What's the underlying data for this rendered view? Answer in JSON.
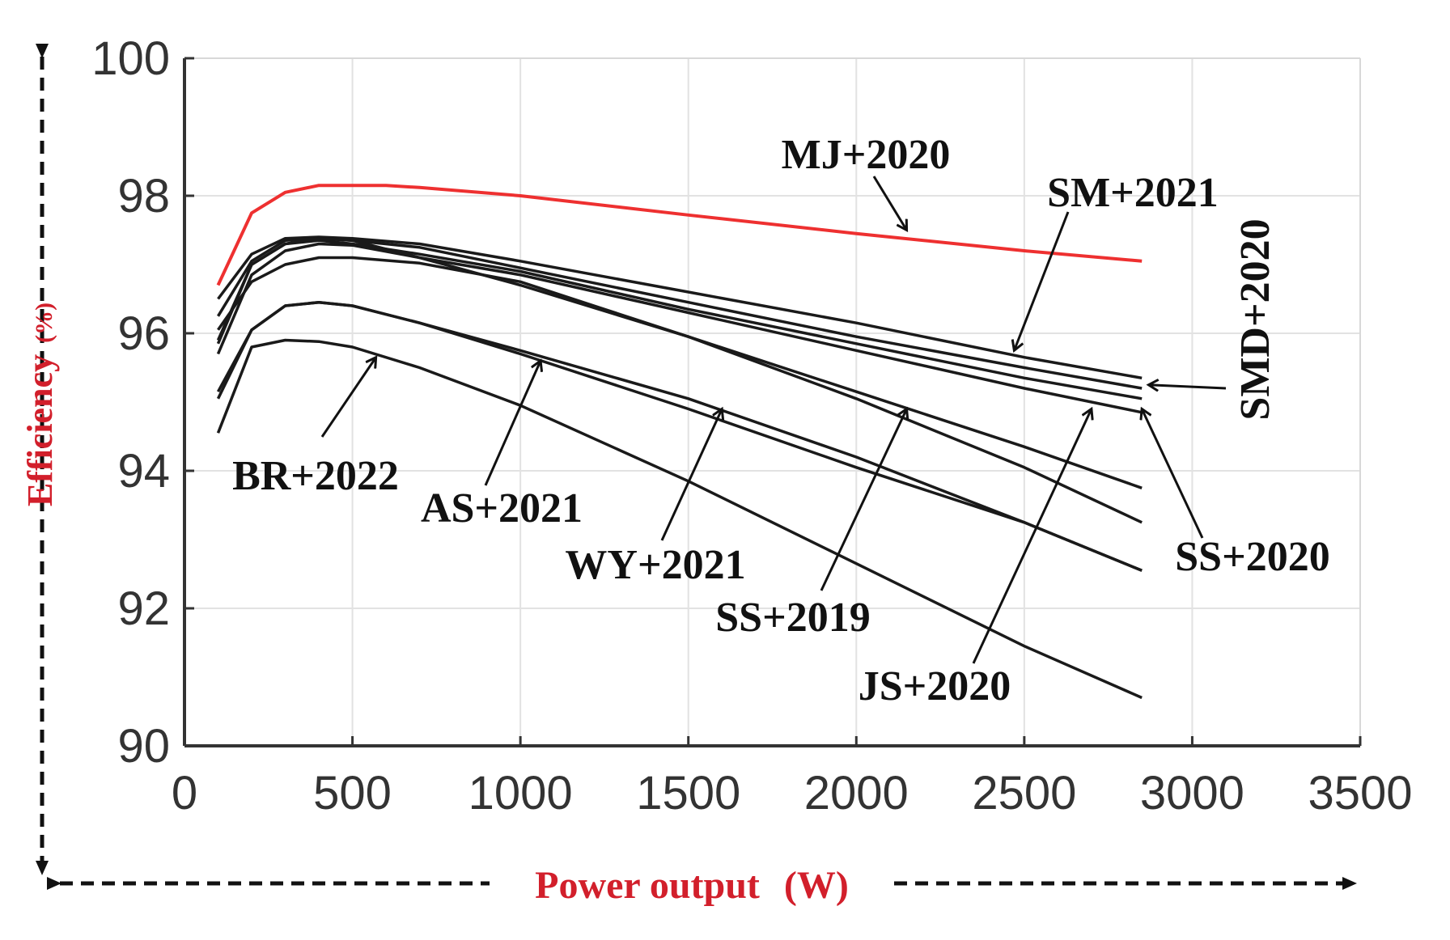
{
  "chart_data": {
    "type": "line",
    "xlabel": "Power output",
    "xunit": "(W)",
    "ylabel": "Efficiency",
    "yunit": "(%)",
    "xlim": [
      0,
      3500
    ],
    "ylim": [
      90,
      100
    ],
    "xticks": [
      "0",
      "500",
      "1000",
      "1500",
      "2000",
      "2500",
      "3000",
      "3500"
    ],
    "yticks": [
      "90",
      "92",
      "94",
      "96",
      "98",
      "100"
    ],
    "grid": true,
    "highlight_color": "#ee3030",
    "line_color": "#1a1a1a",
    "series": [
      {
        "name": "MJ+2020",
        "highlight": true,
        "x": [
          100,
          200,
          300,
          400,
          500,
          600,
          700,
          1000,
          1500,
          2000,
          2500,
          2850
        ],
        "y": [
          96.7,
          97.75,
          98.05,
          98.15,
          98.15,
          98.15,
          98.12,
          98.0,
          97.72,
          97.45,
          97.2,
          97.05
        ]
      },
      {
        "name": "SM+2021",
        "x": [
          100,
          200,
          300,
          400,
          500,
          700,
          1000,
          1500,
          2000,
          2500,
          2850
        ],
        "y": [
          96.5,
          97.15,
          97.38,
          97.4,
          97.38,
          97.3,
          97.05,
          96.6,
          96.15,
          95.65,
          95.35
        ]
      },
      {
        "name": "SMD+2020",
        "x": [
          100,
          200,
          300,
          400,
          500,
          700,
          1000,
          1500,
          2000,
          2500,
          2850
        ],
        "y": [
          96.25,
          97.05,
          97.35,
          97.38,
          97.35,
          97.25,
          96.95,
          96.45,
          95.95,
          95.5,
          95.2
        ]
      },
      {
        "name": "SS+2020",
        "x": [
          100,
          200,
          300,
          400,
          500,
          700,
          1000,
          1500,
          2000,
          2500,
          2850
        ],
        "y": [
          95.9,
          97.0,
          97.3,
          97.35,
          97.3,
          97.15,
          96.9,
          96.35,
          95.85,
          95.35,
          95.05
        ]
      },
      {
        "name": "SS+2020",
        "x": [
          100,
          200,
          300,
          400,
          500,
          700,
          1000,
          1500,
          2000,
          2500,
          2850
        ],
        "y": [
          95.7,
          96.85,
          97.2,
          97.3,
          97.28,
          97.1,
          96.85,
          96.3,
          95.75,
          95.2,
          94.85
        ]
      },
      {
        "name": "JS+2020",
        "x": [
          100,
          200,
          300,
          400,
          500,
          700,
          1000,
          1500,
          2000,
          2500,
          2850
        ],
        "y": [
          95.85,
          97.0,
          97.3,
          97.38,
          97.35,
          97.1,
          96.7,
          95.95,
          95.15,
          94.35,
          93.75
        ]
      },
      {
        "name": "SS+2019",
        "x": [
          100,
          200,
          300,
          400,
          500,
          700,
          1000,
          1500,
          2000,
          2500,
          2850
        ],
        "y": [
          96.05,
          96.75,
          97.0,
          97.1,
          97.1,
          97.02,
          96.75,
          95.95,
          95.05,
          94.05,
          93.25
        ]
      },
      {
        "name": "WY+2021",
        "x": [
          100,
          200,
          300,
          400,
          500,
          700,
          1000,
          1500,
          2000,
          2500,
          2850
        ],
        "y": [
          95.15,
          96.05,
          96.4,
          96.45,
          96.4,
          96.15,
          95.75,
          95.05,
          94.2,
          93.25,
          92.55
        ]
      },
      {
        "name": "AS+2021",
        "x": [
          100,
          200,
          300,
          400,
          500,
          700,
          1000,
          1500,
          2000,
          2500,
          2850
        ],
        "y": [
          95.05,
          96.05,
          96.4,
          96.45,
          96.4,
          96.15,
          95.7,
          94.9,
          94.05,
          93.25,
          92.55
        ]
      },
      {
        "name": "BR+2022",
        "x": [
          100,
          200,
          300,
          400,
          500,
          700,
          1000,
          1500,
          2000,
          2500,
          2850
        ],
        "y": [
          94.55,
          95.8,
          95.9,
          95.88,
          95.8,
          95.5,
          94.95,
          93.85,
          92.65,
          91.45,
          90.7
        ]
      }
    ],
    "annotations": [
      {
        "label": "MJ+2020",
        "series": "MJ+2020",
        "point": [
          2150,
          97.5
        ]
      },
      {
        "label": "SM+2021",
        "series": "SM+2021",
        "point": [
          2470,
          95.75
        ]
      },
      {
        "label": "SMD+2020",
        "series": "SMD+2020",
        "point": [
          2870,
          95.25
        ]
      },
      {
        "label": "SS+2020",
        "series": "SS+2020",
        "point": [
          2850,
          94.9
        ]
      },
      {
        "label": "JS+2020",
        "series": "JS+2020",
        "point": [
          2700,
          94.9
        ]
      },
      {
        "label": "SS+2019",
        "series": "SS+2019",
        "point": [
          2150,
          94.9
        ]
      },
      {
        "label": "WY+2021",
        "series": "WY+2021",
        "point": [
          1600,
          94.9
        ]
      },
      {
        "label": "AS+2021",
        "series": "AS+2021",
        "point": [
          1060,
          95.6
        ]
      },
      {
        "label": "BR+2022",
        "series": "BR+2022",
        "point": [
          570,
          95.65
        ]
      }
    ]
  }
}
